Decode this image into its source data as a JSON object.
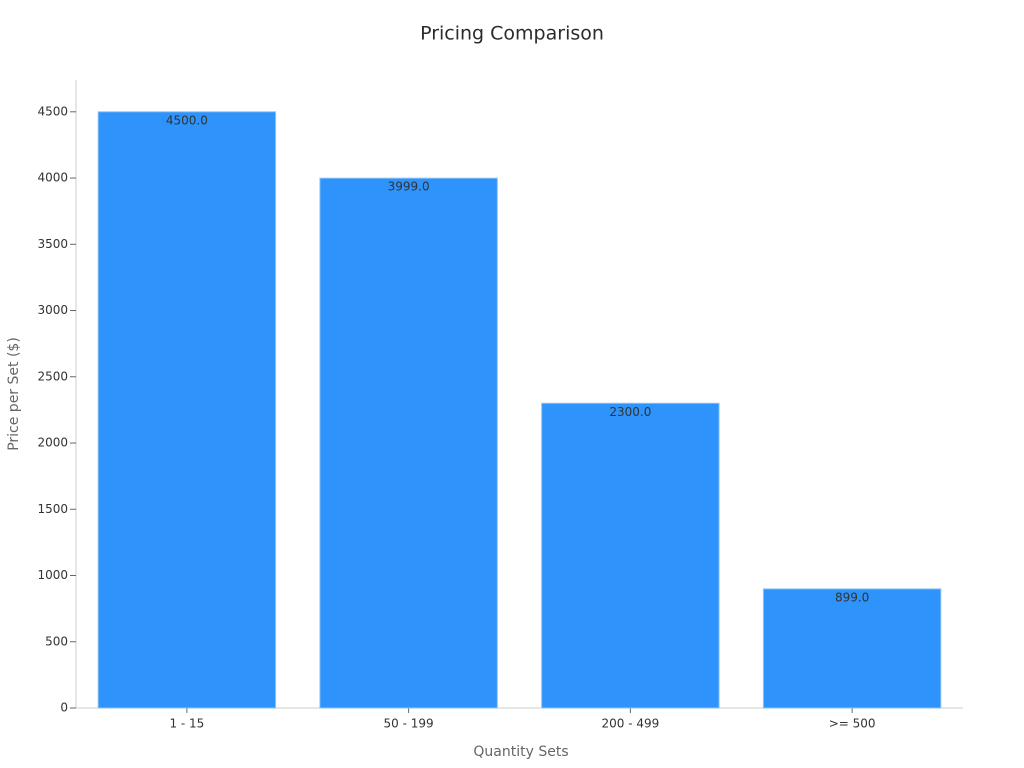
{
  "chart_data": {
    "type": "bar",
    "title": "Pricing Comparison",
    "x_label": "Quantity Sets",
    "y_label": "Price per Set ($)",
    "categories": [
      "1 - 15",
      "50 - 199",
      "200 - 499",
      ">= 500"
    ],
    "values": [
      4500,
      3999,
      2300,
      899
    ],
    "value_labels": [
      "4500.0",
      "3999.0",
      "2300.0",
      "899.0"
    ],
    "color": "#2e93fa",
    "ylim": [
      0,
      4740
    ],
    "yticks": [
      0,
      500,
      1000,
      1500,
      2000,
      2500,
      3000,
      3500,
      4000,
      4500
    ],
    "grid": false
  }
}
